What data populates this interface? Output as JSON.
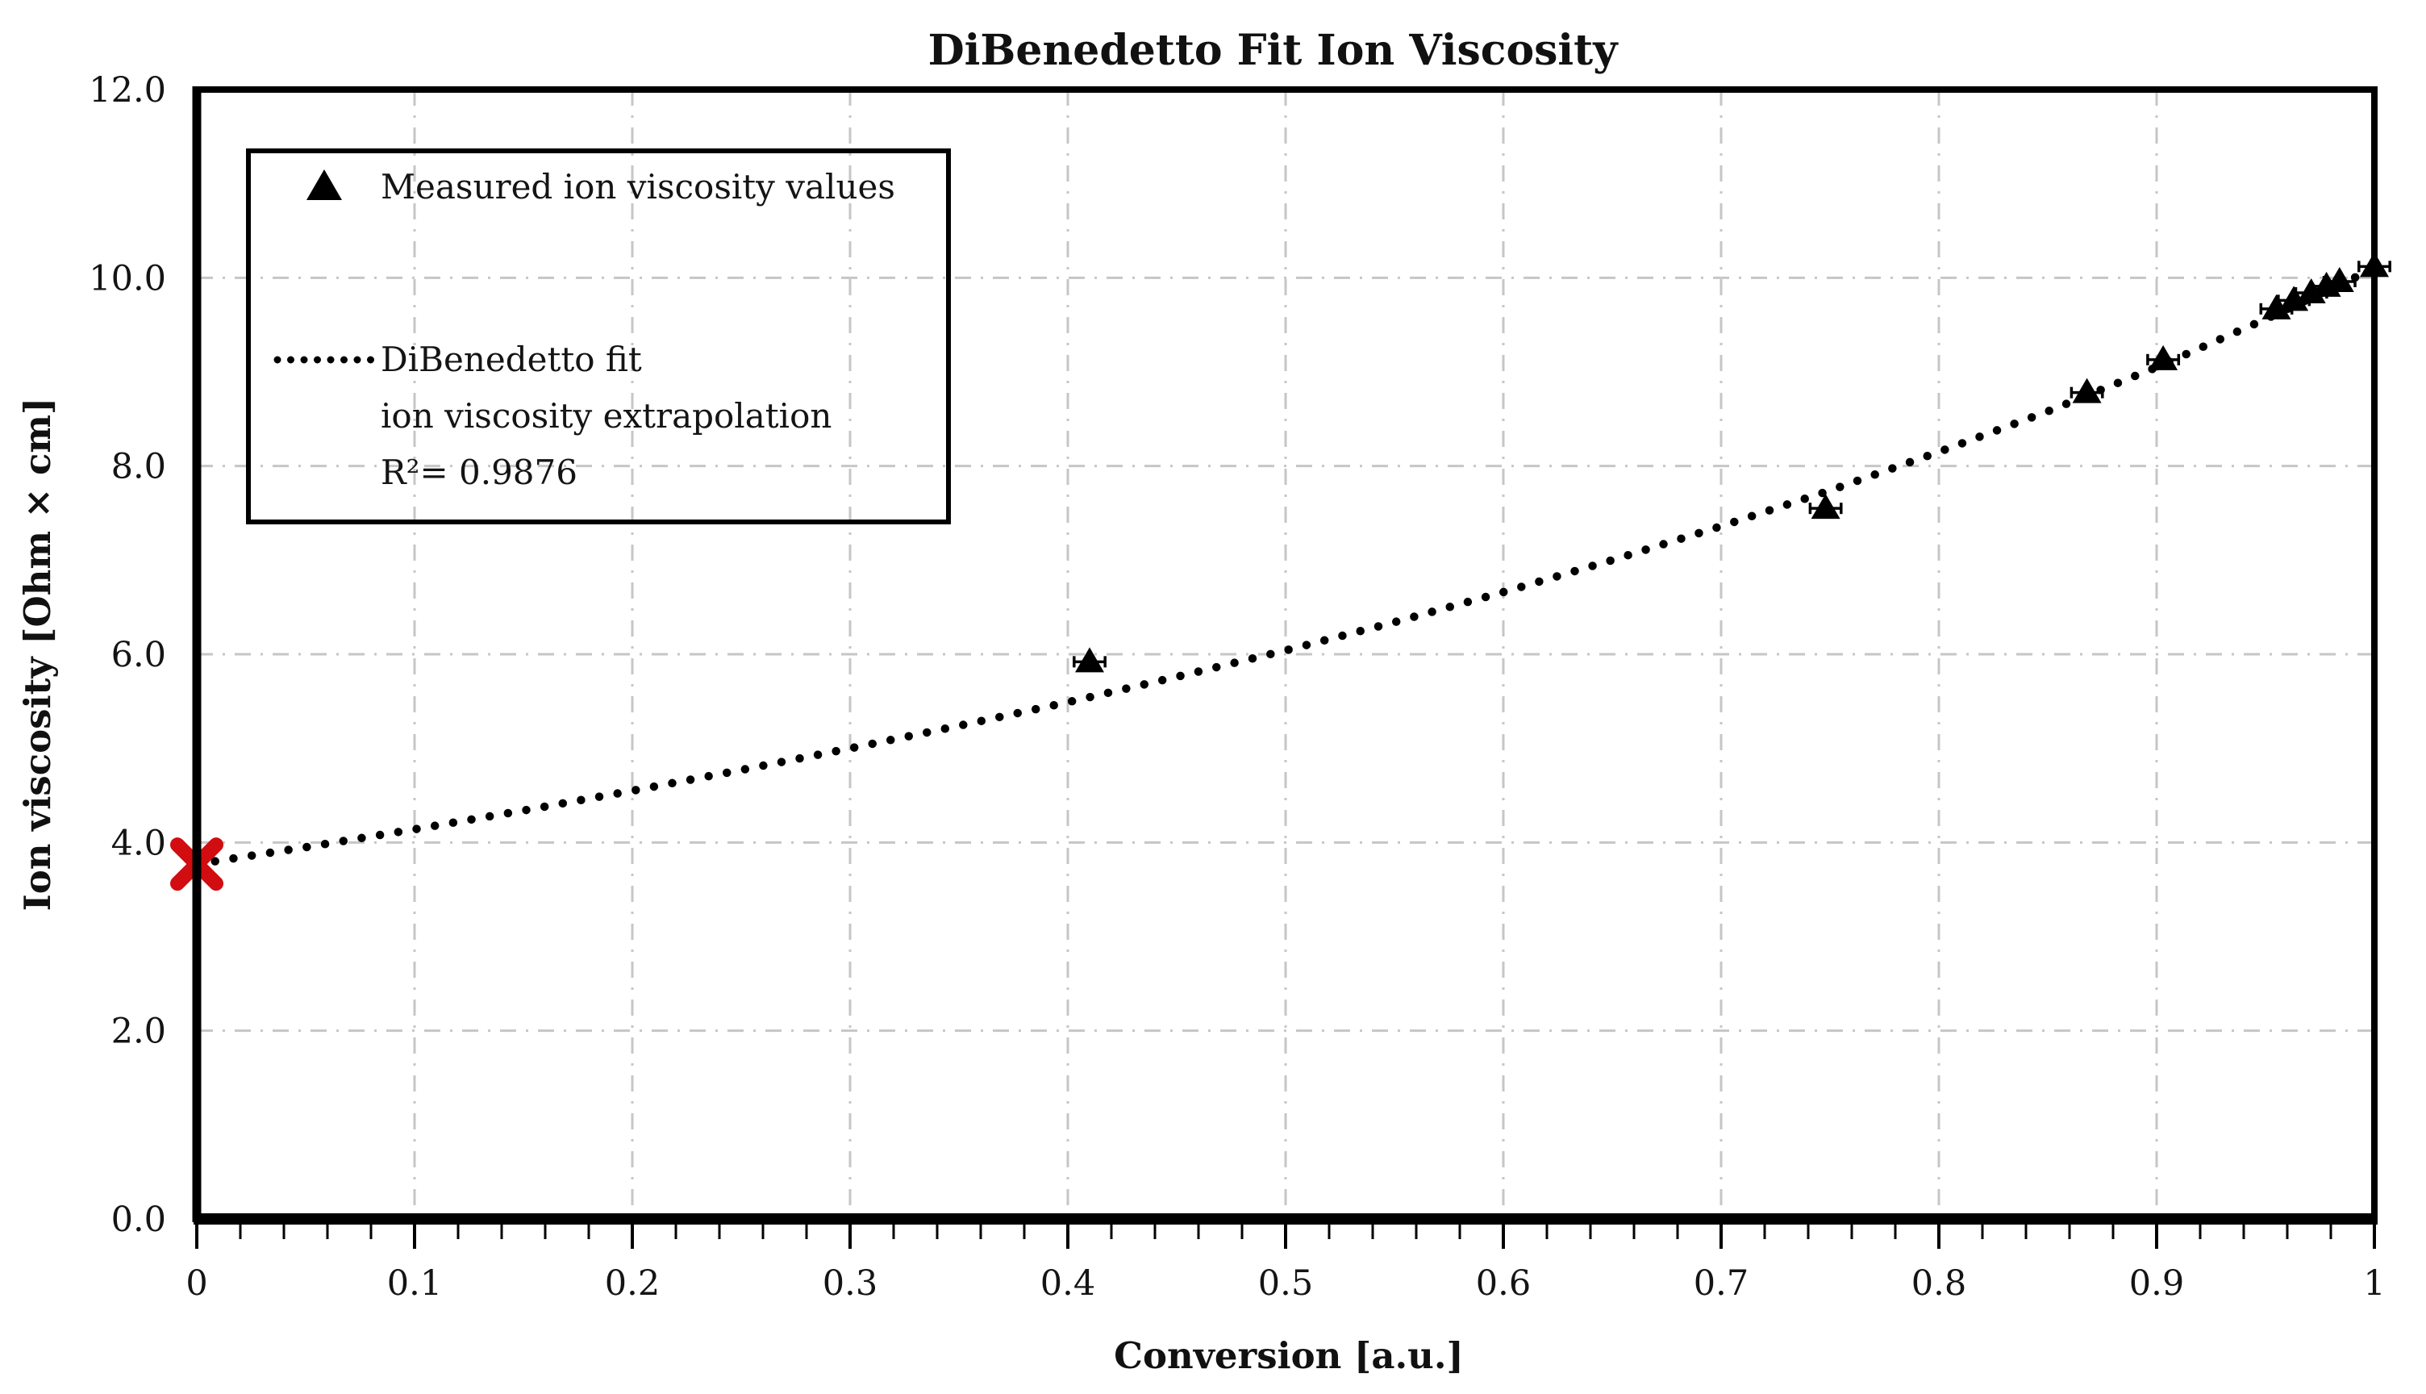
{
  "figure": {
    "background_color": "#ffffff",
    "text_color": "#141414",
    "axis_color": "#000000"
  },
  "chart_data": {
    "type": "scatter",
    "title": "DiBenedetto Fit Ion Viscosity",
    "xlabel": "Conversion [a.u.]",
    "ylabel": "Ion viscosity [Ohm × cm]",
    "xlim": [
      0,
      1
    ],
    "ylim": [
      0,
      12
    ],
    "x_ticks": [
      0,
      0.1,
      0.2,
      0.3,
      0.4,
      0.5,
      0.6,
      0.7,
      0.8,
      0.9,
      1
    ],
    "x_tick_labels": [
      "0",
      "0.1",
      "0.2",
      "0.3",
      "0.4",
      "0.5",
      "0.6",
      "0.7",
      "0.8",
      "0.9",
      "1"
    ],
    "x_minor_tick_step": 0.02,
    "y_ticks": [
      0,
      2,
      4,
      6,
      8,
      10,
      12
    ],
    "y_tick_labels": [
      "0.0",
      "2.0",
      "4.0",
      "6.0",
      "8.0",
      "10.0",
      "12.0"
    ],
    "grid": true,
    "grid_style": "dash-dot",
    "grid_color": "#c6c6c6",
    "legend_position": "upper-left",
    "series": [
      {
        "name": "Measured ion viscosity values",
        "type": "scatter",
        "marker": "triangle",
        "color": "#000000",
        "x_error": 0.006,
        "points": [
          [
            0.41,
            5.92
          ],
          [
            0.748,
            7.55
          ],
          [
            0.868,
            8.78
          ],
          [
            0.903,
            9.13
          ],
          [
            0.955,
            9.67
          ],
          [
            0.963,
            9.76
          ],
          [
            0.971,
            9.84
          ],
          [
            0.978,
            9.91
          ],
          [
            0.984,
            9.96
          ],
          [
            1.0,
            10.12
          ]
        ]
      },
      {
        "name": "DiBenedetto fit ion viscosity extrapolation",
        "type": "dotted_line",
        "color": "#000000",
        "r_squared": 0.9876,
        "points": [
          [
            0.0,
            3.77
          ],
          [
            0.05,
            3.95
          ],
          [
            0.1,
            4.14
          ],
          [
            0.15,
            4.34
          ],
          [
            0.2,
            4.55
          ],
          [
            0.25,
            4.77
          ],
          [
            0.3,
            5.0
          ],
          [
            0.35,
            5.24
          ],
          [
            0.4,
            5.49
          ],
          [
            0.45,
            5.76
          ],
          [
            0.5,
            6.04
          ],
          [
            0.55,
            6.34
          ],
          [
            0.6,
            6.66
          ],
          [
            0.65,
            7.0
          ],
          [
            0.7,
            7.36
          ],
          [
            0.75,
            7.74
          ],
          [
            0.8,
            8.15
          ],
          [
            0.85,
            8.58
          ],
          [
            0.9,
            9.05
          ],
          [
            0.95,
            9.56
          ],
          [
            1.0,
            10.1
          ]
        ]
      }
    ],
    "extrapolated_zero_conversion_marker": {
      "marker": "x",
      "color": "#d10d11",
      "point": [
        0,
        3.77
      ]
    }
  },
  "legend": {
    "entry1_label": "Measured ion viscosity values",
    "entry2_line1": "DiBenedetto fit",
    "entry2_line2": "ion viscosity extrapolation",
    "entry2_line3": "R²= 0.9876"
  }
}
